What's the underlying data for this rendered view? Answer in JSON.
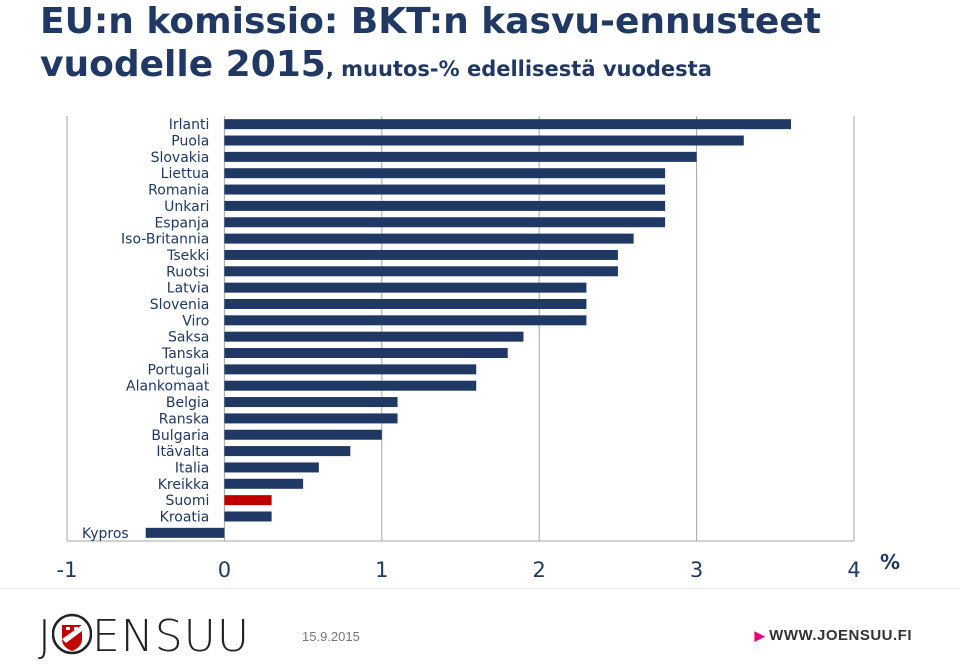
{
  "title_line1": "EU:n komissio: BKT:n kasvu-ennusteet",
  "title_line2_main": "vuodelle 2015",
  "title_line2_sub": ", muutos-% edellisestä vuodesta",
  "colors": {
    "bar": "#1f3864",
    "highlight": "#c00000",
    "text": "#1f3864",
    "grid": "#a6a6a6"
  },
  "chart_data": {
    "type": "bar",
    "orientation": "horizontal",
    "title": "EU:n komissio: BKT:n kasvu-ennusteet vuodelle 2015, muutos-% edellisestä vuodesta",
    "xlabel": "%",
    "xlim": [
      -1,
      4
    ],
    "xticks": [
      -1,
      0,
      1,
      2,
      3,
      4
    ],
    "grid": "vertical",
    "categories": [
      "Irlanti",
      "Puola",
      "Slovakia",
      "Liettua",
      "Romania",
      "Unkari",
      "Espanja",
      "Iso-Britannia",
      "Tsekki",
      "Ruotsi",
      "Latvia",
      "Slovenia",
      "Viro",
      "Saksa",
      "Tanska",
      "Portugali",
      "Alankomaat",
      "Belgia",
      "Ranska",
      "Bulgaria",
      "Itävalta",
      "Italia",
      "Kreikka",
      "Suomi",
      "Kroatia",
      "Kypros"
    ],
    "values": [
      3.6,
      3.3,
      3.0,
      2.8,
      2.8,
      2.8,
      2.8,
      2.6,
      2.5,
      2.5,
      2.3,
      2.3,
      2.3,
      1.9,
      1.8,
      1.6,
      1.6,
      1.1,
      1.1,
      1.0,
      0.8,
      0.6,
      0.5,
      0.3,
      0.3,
      -0.5
    ],
    "highlight": "Suomi"
  },
  "footer": {
    "brand_left": "J",
    "brand_right": "ENSUU",
    "date": "15.9.2015",
    "website": "WWW.JOENSUU.FI"
  }
}
